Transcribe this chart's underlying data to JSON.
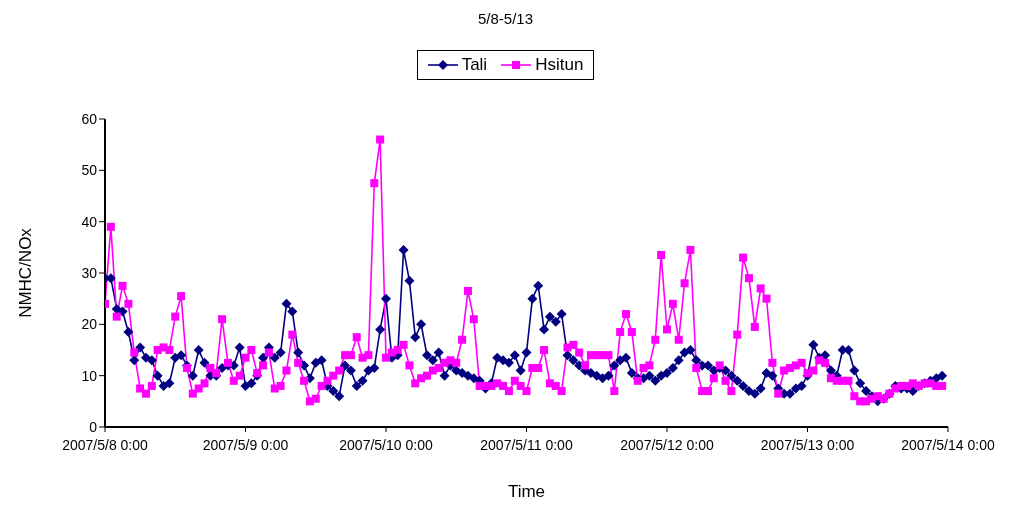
{
  "chart_data": {
    "type": "line",
    "title": "5/8-5/13",
    "xlabel": "Time",
    "ylabel": "NMHC/NOx",
    "x": [
      "2007-05-08T00:00",
      "2007-05-08T01:00",
      "2007-05-08T02:00",
      "2007-05-08T03:00",
      "2007-05-08T04:00",
      "2007-05-08T05:00",
      "2007-05-08T06:00",
      "2007-05-08T07:00",
      "2007-05-08T08:00",
      "2007-05-08T09:00",
      "2007-05-08T10:00",
      "2007-05-08T11:00",
      "2007-05-08T12:00",
      "2007-05-08T13:00",
      "2007-05-08T14:00",
      "2007-05-08T15:00",
      "2007-05-08T16:00",
      "2007-05-08T17:00",
      "2007-05-08T18:00",
      "2007-05-08T19:00",
      "2007-05-08T20:00",
      "2007-05-08T21:00",
      "2007-05-08T22:00",
      "2007-05-08T23:00",
      "2007-05-09T00:00",
      "2007-05-09T01:00",
      "2007-05-09T02:00",
      "2007-05-09T03:00",
      "2007-05-09T04:00",
      "2007-05-09T05:00",
      "2007-05-09T06:00",
      "2007-05-09T07:00",
      "2007-05-09T08:00",
      "2007-05-09T09:00",
      "2007-05-09T10:00",
      "2007-05-09T11:00",
      "2007-05-09T12:00",
      "2007-05-09T13:00",
      "2007-05-09T14:00",
      "2007-05-09T15:00",
      "2007-05-09T16:00",
      "2007-05-09T17:00",
      "2007-05-09T18:00",
      "2007-05-09T19:00",
      "2007-05-09T20:00",
      "2007-05-09T21:00",
      "2007-05-09T22:00",
      "2007-05-09T23:00",
      "2007-05-10T00:00",
      "2007-05-10T01:00",
      "2007-05-10T02:00",
      "2007-05-10T03:00",
      "2007-05-10T04:00",
      "2007-05-10T05:00",
      "2007-05-10T06:00",
      "2007-05-10T07:00",
      "2007-05-10T08:00",
      "2007-05-10T09:00",
      "2007-05-10T10:00",
      "2007-05-10T11:00",
      "2007-05-10T12:00",
      "2007-05-10T13:00",
      "2007-05-10T14:00",
      "2007-05-10T15:00",
      "2007-05-10T16:00",
      "2007-05-10T17:00",
      "2007-05-10T18:00",
      "2007-05-10T19:00",
      "2007-05-10T20:00",
      "2007-05-10T21:00",
      "2007-05-10T22:00",
      "2007-05-10T23:00",
      "2007-05-11T00:00",
      "2007-05-11T01:00",
      "2007-05-11T02:00",
      "2007-05-11T03:00",
      "2007-05-11T04:00",
      "2007-05-11T05:00",
      "2007-05-11T06:00",
      "2007-05-11T07:00",
      "2007-05-11T08:00",
      "2007-05-11T09:00",
      "2007-05-11T10:00",
      "2007-05-11T11:00",
      "2007-05-11T12:00",
      "2007-05-11T13:00",
      "2007-05-11T14:00",
      "2007-05-11T15:00",
      "2007-05-11T16:00",
      "2007-05-11T17:00",
      "2007-05-11T18:00",
      "2007-05-11T19:00",
      "2007-05-11T20:00",
      "2007-05-11T21:00",
      "2007-05-11T22:00",
      "2007-05-11T23:00",
      "2007-05-12T00:00",
      "2007-05-12T01:00",
      "2007-05-12T02:00",
      "2007-05-12T03:00",
      "2007-05-12T04:00",
      "2007-05-12T05:00",
      "2007-05-12T06:00",
      "2007-05-12T07:00",
      "2007-05-12T08:00",
      "2007-05-12T09:00",
      "2007-05-12T10:00",
      "2007-05-12T11:00",
      "2007-05-12T12:00",
      "2007-05-12T13:00",
      "2007-05-12T14:00",
      "2007-05-12T15:00",
      "2007-05-12T16:00",
      "2007-05-12T17:00",
      "2007-05-12T18:00",
      "2007-05-12T19:00",
      "2007-05-12T20:00",
      "2007-05-12T21:00",
      "2007-05-12T22:00",
      "2007-05-12T23:00",
      "2007-05-13T00:00",
      "2007-05-13T01:00",
      "2007-05-13T02:00",
      "2007-05-13T03:00",
      "2007-05-13T04:00",
      "2007-05-13T05:00",
      "2007-05-13T06:00",
      "2007-05-13T07:00",
      "2007-05-13T08:00",
      "2007-05-13T09:00",
      "2007-05-13T10:00",
      "2007-05-13T11:00",
      "2007-05-13T12:00",
      "2007-05-13T13:00",
      "2007-05-13T14:00",
      "2007-05-13T15:00",
      "2007-05-13T16:00",
      "2007-05-13T17:00",
      "2007-05-13T18:00",
      "2007-05-13T19:00",
      "2007-05-13T20:00",
      "2007-05-13T21:00",
      "2007-05-13T22:00",
      "2007-05-13T23:00"
    ],
    "xlim": [
      "2007-05-08T00:00",
      "2007-05-14T00:00"
    ],
    "xticks": [
      {
        "value": "2007-05-08T00:00",
        "label": "2007/5/8 0:00"
      },
      {
        "value": "2007-05-09T00:00",
        "label": "2007/5/9 0:00"
      },
      {
        "value": "2007-05-10T00:00",
        "label": "2007/5/10 0:00"
      },
      {
        "value": "2007-05-11T00:00",
        "label": "2007/5/11 0:00"
      },
      {
        "value": "2007-05-12T00:00",
        "label": "2007/5/12 0:00"
      },
      {
        "value": "2007-05-13T00:00",
        "label": "2007/5/13 0:00"
      },
      {
        "value": "2007-05-14T00:00",
        "label": "2007/5/14 0:00"
      }
    ],
    "ylim": [
      0,
      60
    ],
    "yticks": [
      0,
      10,
      20,
      30,
      40,
      50,
      60
    ],
    "legend": "top",
    "line_style": "solid",
    "series": [
      {
        "name": "Tali",
        "color": "#000080",
        "marker": "diamond",
        "values": [
          29,
          29,
          23,
          22.5,
          18.5,
          13,
          15.5,
          13.5,
          13,
          10,
          8,
          8.5,
          13.5,
          14,
          12,
          10,
          15,
          12.5,
          10,
          10,
          11.5,
          12,
          12,
          15.5,
          8,
          8.5,
          10,
          13.5,
          15.5,
          13.5,
          14.5,
          24,
          22.5,
          14.5,
          12,
          9.5,
          12.5,
          13,
          8,
          7,
          6,
          12,
          11,
          8,
          9,
          11,
          11.5,
          19,
          25,
          13.5,
          14,
          34.5,
          28.5,
          17.5,
          20,
          14,
          13,
          14.5,
          10,
          12,
          11,
          10.5,
          10,
          9.5,
          9,
          7.5,
          8.5,
          13.5,
          13,
          12.5,
          14,
          11,
          14.5,
          25,
          27.5,
          19,
          21.5,
          20.5,
          22,
          14,
          13,
          12,
          11,
          10.5,
          10,
          9.5,
          10,
          12,
          13,
          13.5,
          10.5,
          9.5,
          9.5,
          10,
          9,
          10,
          10.5,
          11.5,
          13,
          14.5,
          15,
          13,
          12,
          12,
          11,
          11.5,
          11,
          10,
          9,
          8,
          7,
          6.5,
          7.5,
          10.5,
          10,
          7.5,
          6.5,
          6.5,
          7.5,
          8,
          10,
          16,
          13.5,
          14,
          11,
          10,
          15,
          15,
          11,
          8.5,
          7,
          6,
          5,
          5.5,
          6.5,
          8,
          7.5,
          7.5,
          7,
          8,
          8.5,
          9,
          9.5,
          10
        ]
      },
      {
        "name": "Hsitun",
        "color": "#ff00ff",
        "marker": "square",
        "values": [
          24,
          39,
          21.5,
          27.5,
          24,
          14.5,
          7.5,
          6.5,
          8,
          15,
          15.5,
          15,
          21.5,
          25.5,
          11.5,
          6.5,
          7.5,
          8.5,
          11.5,
          10.5,
          21,
          12.5,
          9,
          10,
          13.5,
          15,
          10.5,
          12,
          14.5,
          7.5,
          8,
          11,
          18,
          12.5,
          9,
          5,
          5.5,
          8,
          9,
          10,
          11,
          14,
          14,
          17.5,
          13.5,
          14,
          47.5,
          56,
          13.5,
          14.5,
          15,
          16,
          12,
          8.5,
          9.5,
          10,
          11,
          11.5,
          12.5,
          13,
          12.5,
          17,
          26.5,
          21,
          8,
          8,
          8,
          8.5,
          8,
          7,
          9,
          8,
          7,
          11.5,
          11.5,
          15,
          8.5,
          8,
          7,
          15.5,
          16,
          14.5,
          12,
          14,
          14,
          14,
          14,
          7,
          18.5,
          22,
          18.5,
          9,
          11.5,
          12,
          17,
          33.5,
          19,
          24,
          17,
          28,
          34.5,
          11.5,
          7,
          7,
          9.5,
          12,
          9,
          7,
          18,
          33,
          29,
          19.5,
          27,
          25,
          12.5,
          6.5,
          11,
          11.5,
          12,
          12.5,
          10.5,
          11,
          13,
          12.5,
          9.5,
          9,
          9,
          9,
          6,
          5,
          5,
          5.5,
          6,
          5.5,
          6.5,
          7.5,
          8,
          8,
          8.5,
          8,
          8.5,
          8.5,
          8,
          8
        ]
      }
    ]
  }
}
